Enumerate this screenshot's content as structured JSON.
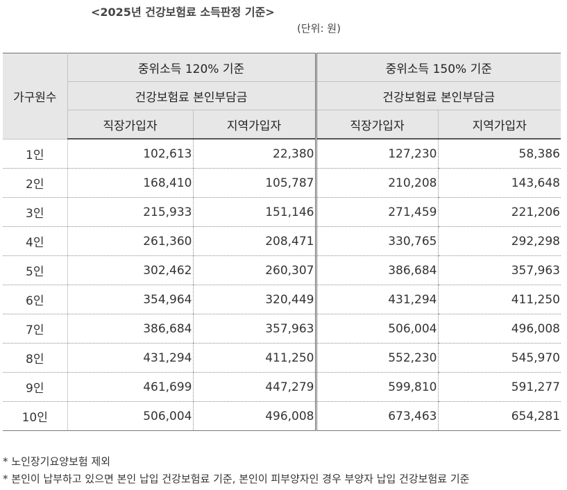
{
  "title": "<2025년 건강보험료 소득판정 기준>",
  "unit": "(단위: 원)",
  "table": {
    "household_header": "가구원수",
    "groups": [
      {
        "label": "중위소득 120% 기준",
        "sub": "건강보험료 본인부담금"
      },
      {
        "label": "중위소득 150% 기준",
        "sub": "건강보험료 본인부담금"
      }
    ],
    "columns": [
      "직장가입자",
      "지역가입자",
      "직장가입자",
      "지역가입자"
    ],
    "rows": [
      {
        "size": "1인",
        "values": [
          "102,613",
          "22,380",
          "127,230",
          "58,386"
        ]
      },
      {
        "size": "2인",
        "values": [
          "168,410",
          "105,787",
          "210,208",
          "143,648"
        ]
      },
      {
        "size": "3인",
        "values": [
          "215,933",
          "151,146",
          "271,459",
          "221,206"
        ]
      },
      {
        "size": "4인",
        "values": [
          "261,360",
          "208,471",
          "330,765",
          "292,298"
        ]
      },
      {
        "size": "5인",
        "values": [
          "302,462",
          "260,307",
          "386,684",
          "357,963"
        ]
      },
      {
        "size": "6인",
        "values": [
          "354,964",
          "320,449",
          "431,294",
          "411,250"
        ]
      },
      {
        "size": "7인",
        "values": [
          "386,684",
          "357,963",
          "506,004",
          "496,008"
        ]
      },
      {
        "size": "8인",
        "values": [
          "431,294",
          "411,250",
          "552,230",
          "545,970"
        ]
      },
      {
        "size": "9인",
        "values": [
          "461,699",
          "447,279",
          "599,810",
          "591,277"
        ]
      },
      {
        "size": "10인",
        "values": [
          "506,004",
          "496,008",
          "673,463",
          "654,281"
        ]
      }
    ]
  },
  "notes": [
    "* 노인장기요양보험 제외",
    "* 본인이 납부하고 있으면 본인 납입 건강보험료 기준, 본인이 피부양자인 경우 부양자 납입 건강보험료 기준"
  ]
}
